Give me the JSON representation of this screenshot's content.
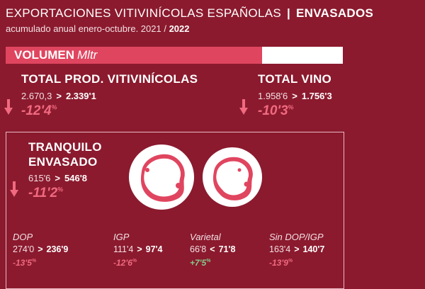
{
  "header": {
    "title": "EXPORTACIONES VITIVINÍCOLAS ESPAÑOLAS",
    "separator": "|",
    "section": "ENVASADOS",
    "subtitle": "acumulado anual enero-octubre. 2021 /",
    "subtitle_year": "2022"
  },
  "volume_bar": {
    "label": "VOLUMEN",
    "unit": "Mltr",
    "fill_fraction": 0.76
  },
  "totals": [
    {
      "title": "TOTAL PROD. VITIVINÍCOLAS",
      "prev": "2.670,3",
      "arrow": ">",
      "current": "2.339'1",
      "pct": "-12'4",
      "pct_unit": "%"
    },
    {
      "title": "TOTAL VINO",
      "prev": "1.958'6",
      "arrow": ">",
      "current": "1.756'3",
      "pct": "-10'3",
      "pct_unit": "%"
    }
  ],
  "still_bottled": {
    "title_line1": "TRANQUILO",
    "title_line2": "ENVASADO",
    "prev": "615'6",
    "arrow": ">",
    "current": "546'8",
    "pct": "-11'2",
    "pct_unit": "%"
  },
  "categories": [
    {
      "label": "DOP",
      "prev": "274'0",
      "arrow": ">",
      "current": "236'9",
      "pct": "-13'5",
      "pct_unit": "%",
      "trend": "down"
    },
    {
      "label": "IGP",
      "prev": "111'4",
      "arrow": ">",
      "current": "97'4",
      "pct": "-12'6",
      "pct_unit": "%",
      "trend": "down"
    },
    {
      "label": "Varietal",
      "prev": "66'8",
      "arrow": "<",
      "current": "71'8",
      "pct": "+7'5",
      "pct_unit": "%",
      "trend": "up"
    },
    {
      "label": "Sin DOP/IGP",
      "prev": "163'4",
      "arrow": ">",
      "current": "140'7",
      "pct": "-13'9",
      "pct_unit": "%",
      "trend": "down"
    }
  ],
  "colors": {
    "background": "#8b1a2e",
    "accent": "#e0455f",
    "negative": "#f06a80",
    "positive": "#86c98a"
  },
  "chart_data": {
    "type": "table",
    "unit": "Mltr",
    "periods": [
      "2021",
      "2022"
    ],
    "rows": [
      {
        "name": "TOTAL PROD. VITIVINÍCOLAS",
        "values": [
          2670.3,
          2339.1
        ],
        "change_pct": -12.4
      },
      {
        "name": "TOTAL VINO",
        "values": [
          1958.6,
          1756.3
        ],
        "change_pct": -10.3
      },
      {
        "name": "TRANQUILO ENVASADO",
        "values": [
          615.6,
          546.8
        ],
        "change_pct": -11.2
      },
      {
        "name": "DOP",
        "values": [
          274.0,
          236.9
        ],
        "change_pct": -13.5
      },
      {
        "name": "IGP",
        "values": [
          111.4,
          97.4
        ],
        "change_pct": -12.6
      },
      {
        "name": "Varietal",
        "values": [
          66.8,
          71.8
        ],
        "change_pct": 7.5
      },
      {
        "name": "Sin DOP/IGP",
        "values": [
          163.4,
          140.7
        ],
        "change_pct": -13.9
      }
    ]
  }
}
